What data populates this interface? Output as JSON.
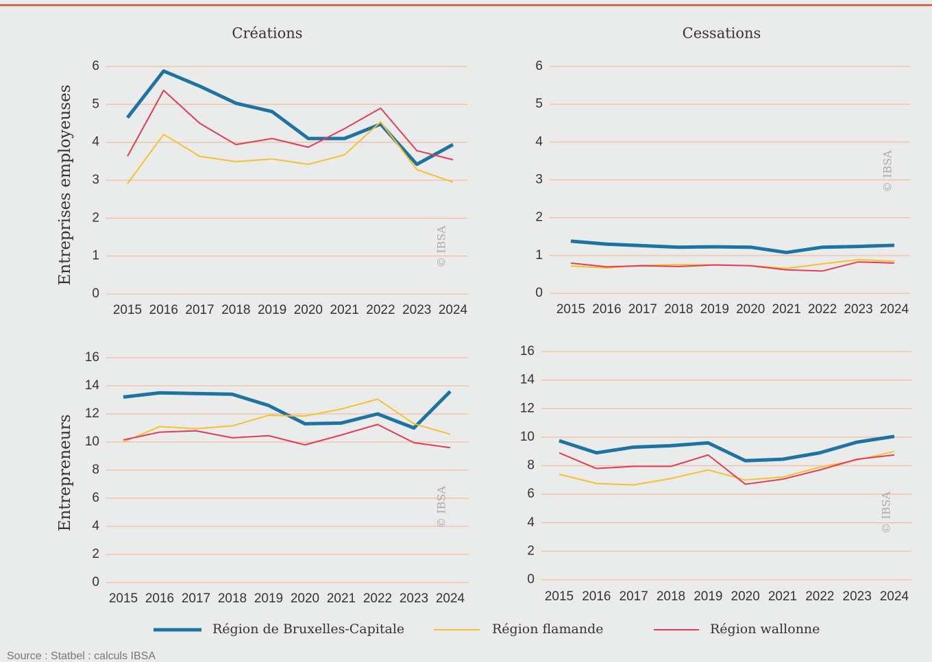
{
  "chart_data": [
    {
      "type": "line",
      "title": "Créations",
      "ylabel": "Entreprises employeuses",
      "watermark": "© IBSA",
      "categories": [
        "2015",
        "2016",
        "2017",
        "2018",
        "2019",
        "2020",
        "2021",
        "2022",
        "2023",
        "2024"
      ],
      "ylim": [
        0,
        6
      ],
      "yticks": [
        0,
        1,
        2,
        3,
        4,
        5,
        6
      ],
      "grid": true,
      "series": [
        {
          "name": "Région de Bruxelles-Capitale",
          "color": "#1f73a3",
          "linewidth": 5,
          "values": [
            4.65,
            5.88,
            5.48,
            5.03,
            4.81,
            4.1,
            4.1,
            4.48,
            3.42,
            3.94
          ]
        },
        {
          "name": "Région flamande",
          "color": "#f8c12c",
          "linewidth": 2,
          "values": [
            2.91,
            4.21,
            3.63,
            3.49,
            3.56,
            3.42,
            3.67,
            4.54,
            3.28,
            2.95
          ]
        },
        {
          "name": "Région wallonne",
          "color": "#e33b56",
          "linewidth": 2,
          "values": [
            3.63,
            5.37,
            4.5,
            3.94,
            4.1,
            3.87,
            4.36,
            4.9,
            3.78,
            3.54
          ]
        }
      ]
    },
    {
      "type": "line",
      "title": "Cessations",
      "watermark": "© IBSA",
      "categories": [
        "2015",
        "2016",
        "2017",
        "2018",
        "2019",
        "2020",
        "2021",
        "2022",
        "2023",
        "2024"
      ],
      "ylim": [
        0,
        6
      ],
      "yticks": [
        0,
        1,
        2,
        3,
        4,
        5,
        6
      ],
      "grid": true,
      "series": [
        {
          "color": "#1f73a3",
          "linewidth": 5,
          "values": [
            1.38,
            1.3,
            1.26,
            1.22,
            1.23,
            1.22,
            1.08,
            1.22,
            1.24,
            1.27
          ]
        },
        {
          "color": "#f8c12c",
          "linewidth": 2,
          "values": [
            0.72,
            0.67,
            0.74,
            0.76,
            0.75,
            0.73,
            0.66,
            0.78,
            0.89,
            0.85
          ]
        },
        {
          "color": "#e33b56",
          "linewidth": 2,
          "values": [
            0.8,
            0.7,
            0.73,
            0.71,
            0.75,
            0.73,
            0.62,
            0.59,
            0.83,
            0.8
          ]
        }
      ]
    },
    {
      "type": "line",
      "ylabel": "Entrepreneurs",
      "watermark": "© IBSA",
      "categories": [
        "2015",
        "2016",
        "2017",
        "2018",
        "2019",
        "2020",
        "2021",
        "2022",
        "2023",
        "2024"
      ],
      "ylim": [
        0,
        16
      ],
      "yticks": [
        0,
        2,
        4,
        6,
        8,
        10,
        12,
        14,
        16
      ],
      "grid": true,
      "series": [
        {
          "color": "#1f73a3",
          "linewidth": 5,
          "values": [
            13.2,
            13.5,
            13.45,
            13.4,
            12.6,
            11.3,
            11.35,
            12.0,
            11.0,
            13.6
          ]
        },
        {
          "color": "#f8c12c",
          "linewidth": 2,
          "values": [
            10.0,
            11.1,
            10.95,
            11.15,
            11.9,
            11.85,
            12.35,
            13.05,
            11.3,
            10.55
          ]
        },
        {
          "color": "#e33b56",
          "linewidth": 2,
          "values": [
            10.15,
            10.7,
            10.8,
            10.3,
            10.45,
            9.8,
            10.5,
            11.25,
            9.95,
            9.6
          ]
        }
      ]
    },
    {
      "type": "line",
      "watermark": "© IBSA",
      "categories": [
        "2015",
        "2016",
        "2017",
        "2018",
        "2019",
        "2020",
        "2021",
        "2022",
        "2023",
        "2024"
      ],
      "ylim": [
        0,
        16
      ],
      "yticks": [
        0,
        2,
        4,
        6,
        8,
        10,
        12,
        14,
        16
      ],
      "grid": true,
      "series": [
        {
          "color": "#1f73a3",
          "linewidth": 5,
          "values": [
            9.75,
            8.9,
            9.3,
            9.4,
            9.6,
            8.35,
            8.45,
            8.9,
            9.65,
            10.05
          ]
        },
        {
          "color": "#f8c12c",
          "linewidth": 2,
          "values": [
            7.4,
            6.75,
            6.65,
            7.1,
            7.7,
            7.0,
            7.2,
            7.9,
            8.4,
            9.0
          ]
        },
        {
          "color": "#e33b56",
          "linewidth": 2,
          "values": [
            8.9,
            7.8,
            7.95,
            7.95,
            8.75,
            6.7,
            7.05,
            7.7,
            8.45,
            8.75
          ]
        }
      ]
    }
  ],
  "source": "Source : Statbel : calculs IBSA"
}
